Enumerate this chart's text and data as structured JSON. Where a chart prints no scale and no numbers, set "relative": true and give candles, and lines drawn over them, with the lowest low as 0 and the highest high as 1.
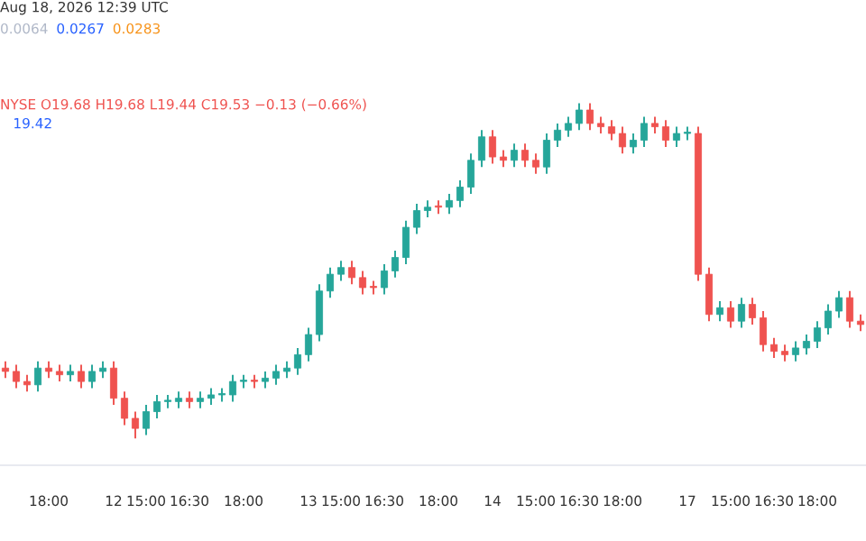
{
  "chart_data": {
    "type": "candlestick",
    "relative": true,
    "title": "NYSE O19.68 H19.68 L19.44 C19.53 −0.13 (−0.66%)",
    "annotations": [
      "Aug 18, 2026 12:39 UTC",
      "0.0064",
      "0.0267",
      "0.0283",
      "19.42"
    ],
    "categories": [
      null,
      null,
      null,
      null,
      "18:00",
      null,
      null,
      null,
      null,
      null,
      "12",
      null,
      null,
      "15:00",
      null,
      null,
      null,
      "16:30",
      null,
      null,
      null,
      null,
      "18:00",
      null,
      null,
      null,
      null,
      null,
      "13",
      null,
      null,
      "15:00",
      null,
      null,
      null,
      "16:30",
      null,
      null,
      null,
      null,
      "18:00",
      null,
      null,
      null,
      null,
      "14",
      null,
      null,
      null,
      "15:00",
      null,
      null,
      null,
      "16:30",
      null,
      null,
      null,
      "18:00",
      null,
      null,
      null,
      null,
      null,
      "17",
      null,
      null,
      null,
      "15:00",
      null,
      null,
      null,
      "16:30",
      null,
      null,
      null,
      "18:00",
      null,
      null,
      null,
      null
    ],
    "ohlc": [
      [
        0.21,
        0.23,
        0.18,
        0.2
      ],
      [
        0.2,
        0.22,
        0.15,
        0.17
      ],
      [
        0.17,
        0.19,
        0.14,
        0.16
      ],
      [
        0.16,
        0.23,
        0.14,
        0.21
      ],
      [
        0.21,
        0.23,
        0.18,
        0.2
      ],
      [
        0.2,
        0.22,
        0.17,
        0.19
      ],
      [
        0.19,
        0.22,
        0.17,
        0.2
      ],
      [
        0.2,
        0.22,
        0.15,
        0.17
      ],
      [
        0.17,
        0.22,
        0.15,
        0.2
      ],
      [
        0.2,
        0.23,
        0.18,
        0.21
      ],
      [
        0.21,
        0.23,
        0.1,
        0.12
      ],
      [
        0.12,
        0.14,
        0.04,
        0.06
      ],
      [
        0.06,
        0.08,
        0.0,
        0.03
      ],
      [
        0.03,
        0.1,
        0.01,
        0.08
      ],
      [
        0.08,
        0.13,
        0.06,
        0.11
      ],
      [
        0.11,
        0.13,
        0.09,
        0.11
      ],
      [
        0.11,
        0.14,
        0.09,
        0.12
      ],
      [
        0.12,
        0.14,
        0.09,
        0.11
      ],
      [
        0.11,
        0.14,
        0.09,
        0.12
      ],
      [
        0.12,
        0.15,
        0.1,
        0.13
      ],
      [
        0.13,
        0.15,
        0.11,
        0.13
      ],
      [
        0.13,
        0.19,
        0.11,
        0.17
      ],
      [
        0.17,
        0.19,
        0.15,
        0.17
      ],
      [
        0.17,
        0.19,
        0.15,
        0.17
      ],
      [
        0.17,
        0.2,
        0.15,
        0.18
      ],
      [
        0.18,
        0.22,
        0.16,
        0.2
      ],
      [
        0.2,
        0.23,
        0.18,
        0.21
      ],
      [
        0.21,
        0.27,
        0.19,
        0.25
      ],
      [
        0.25,
        0.33,
        0.23,
        0.31
      ],
      [
        0.31,
        0.46,
        0.29,
        0.44
      ],
      [
        0.44,
        0.51,
        0.42,
        0.49
      ],
      [
        0.49,
        0.53,
        0.47,
        0.51
      ],
      [
        0.51,
        0.53,
        0.46,
        0.48
      ],
      [
        0.48,
        0.5,
        0.43,
        0.45
      ],
      [
        0.45,
        0.47,
        0.43,
        0.45
      ],
      [
        0.45,
        0.52,
        0.43,
        0.5
      ],
      [
        0.5,
        0.56,
        0.48,
        0.54
      ],
      [
        0.54,
        0.65,
        0.52,
        0.63
      ],
      [
        0.63,
        0.7,
        0.61,
        0.68
      ],
      [
        0.68,
        0.71,
        0.66,
        0.69
      ],
      [
        0.69,
        0.71,
        0.67,
        0.69
      ],
      [
        0.69,
        0.73,
        0.67,
        0.71
      ],
      [
        0.71,
        0.77,
        0.69,
        0.75
      ],
      [
        0.75,
        0.85,
        0.73,
        0.83
      ],
      [
        0.83,
        0.92,
        0.81,
        0.9
      ],
      [
        0.9,
        0.92,
        0.82,
        0.84
      ],
      [
        0.84,
        0.86,
        0.81,
        0.83
      ],
      [
        0.83,
        0.88,
        0.81,
        0.86
      ],
      [
        0.86,
        0.88,
        0.81,
        0.83
      ],
      [
        0.83,
        0.85,
        0.79,
        0.81
      ],
      [
        0.81,
        0.91,
        0.79,
        0.89
      ],
      [
        0.89,
        0.94,
        0.87,
        0.92
      ],
      [
        0.92,
        0.96,
        0.9,
        0.94
      ],
      [
        0.94,
        1.0,
        0.92,
        0.98
      ],
      [
        0.98,
        1.0,
        0.92,
        0.94
      ],
      [
        0.94,
        0.96,
        0.91,
        0.93
      ],
      [
        0.93,
        0.95,
        0.89,
        0.91
      ],
      [
        0.91,
        0.93,
        0.85,
        0.87
      ],
      [
        0.87,
        0.91,
        0.85,
        0.89
      ],
      [
        0.89,
        0.96,
        0.87,
        0.94
      ],
      [
        0.94,
        0.96,
        0.91,
        0.93
      ],
      [
        0.93,
        0.95,
        0.87,
        0.89
      ],
      [
        0.89,
        0.93,
        0.87,
        0.91
      ],
      [
        0.91,
        0.93,
        0.89,
        0.91
      ],
      [
        0.91,
        0.93,
        0.47,
        0.49
      ],
      [
        0.49,
        0.51,
        0.35,
        0.37
      ],
      [
        0.37,
        0.41,
        0.35,
        0.39
      ],
      [
        0.39,
        0.41,
        0.33,
        0.35
      ],
      [
        0.35,
        0.42,
        0.33,
        0.4
      ],
      [
        0.4,
        0.42,
        0.34,
        0.36
      ],
      [
        0.36,
        0.38,
        0.26,
        0.28
      ],
      [
        0.28,
        0.3,
        0.24,
        0.26
      ],
      [
        0.26,
        0.28,
        0.23,
        0.25
      ],
      [
        0.25,
        0.29,
        0.23,
        0.27
      ],
      [
        0.27,
        0.31,
        0.25,
        0.29
      ],
      [
        0.29,
        0.35,
        0.27,
        0.33
      ],
      [
        0.33,
        0.4,
        0.31,
        0.38
      ],
      [
        0.38,
        0.44,
        0.36,
        0.42
      ],
      [
        0.42,
        0.44,
        0.33,
        0.35
      ],
      [
        0.35,
        0.37,
        0.32,
        0.34
      ]
    ],
    "colors": [
      "#ef5350",
      "#ef5350",
      "#ef5350",
      "#26a69a",
      "#ef5350",
      "#ef5350",
      "#26a69a",
      "#ef5350",
      "#26a69a",
      "#26a69a",
      "#ef5350",
      "#ef5350",
      "#ef5350",
      "#26a69a",
      "#26a69a",
      "#26a69a",
      "#26a69a",
      "#ef5350",
      "#26a69a",
      "#26a69a",
      "#26a69a",
      "#26a69a",
      "#26a69a",
      "#ef5350",
      "#26a69a",
      "#26a69a",
      "#26a69a",
      "#26a69a",
      "#26a69a",
      "#26a69a",
      "#26a69a",
      "#26a69a",
      "#ef5350",
      "#ef5350",
      "#ef5350",
      "#26a69a",
      "#26a69a",
      "#26a69a",
      "#26a69a",
      "#26a69a",
      "#ef5350",
      "#26a69a",
      "#26a69a",
      "#26a69a",
      "#26a69a",
      "#ef5350",
      "#ef5350",
      "#26a69a",
      "#ef5350",
      "#ef5350",
      "#26a69a",
      "#26a69a",
      "#26a69a",
      "#26a69a",
      "#ef5350",
      "#ef5350",
      "#ef5350",
      "#ef5350",
      "#26a69a",
      "#26a69a",
      "#ef5350",
      "#ef5350",
      "#26a69a",
      "#26a69a",
      "#ef5350",
      "#ef5350",
      "#26a69a",
      "#ef5350",
      "#26a69a",
      "#ef5350",
      "#ef5350",
      "#ef5350",
      "#ef5350",
      "#26a69a",
      "#26a69a",
      "#26a69a",
      "#26a69a",
      "#26a69a",
      "#ef5350",
      "#ef5350"
    ]
  }
}
